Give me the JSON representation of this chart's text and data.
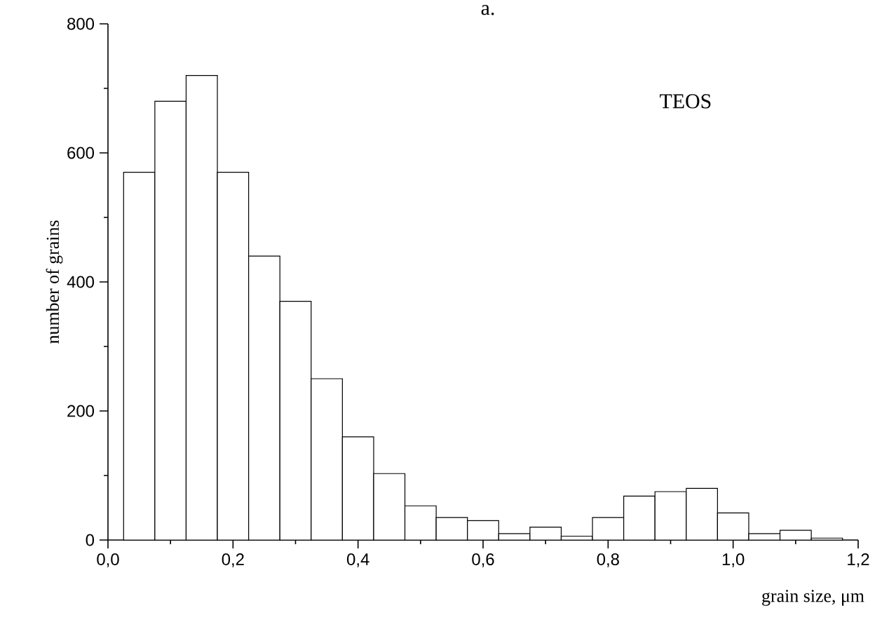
{
  "chart_data": {
    "type": "histogram",
    "title": "a.",
    "xlabel": "grain size, μm",
    "ylabel": "number of grains",
    "annotations": [
      "TEOS"
    ],
    "bins": [
      0.025,
      0.075,
      0.125,
      0.175,
      0.225,
      0.275,
      0.325,
      0.375,
      0.425,
      0.475,
      0.525,
      0.575,
      0.625,
      0.675,
      0.725,
      0.775,
      0.825,
      0.875,
      0.925,
      0.975,
      1.025,
      1.075,
      1.125,
      1.175
    ],
    "values": [
      570,
      680,
      720,
      570,
      440,
      370,
      250,
      160,
      103,
      53,
      35,
      30,
      10,
      20,
      6,
      35,
      68,
      75,
      80,
      42,
      10,
      15,
      3
    ],
    "color": "#ffffff",
    "xlim": [
      0,
      1.2
    ],
    "ylim": [
      0,
      800
    ],
    "xticks": [
      {
        "value": 0,
        "label": "0,0"
      },
      {
        "value": 0.2,
        "label": "0,2"
      },
      {
        "value": 0.4,
        "label": "0,4"
      },
      {
        "value": 0.6,
        "label": "0,6"
      },
      {
        "value": 0.8,
        "label": "0,8"
      },
      {
        "value": 1.0,
        "label": "1,0"
      },
      {
        "value": 1.2,
        "label": "1,2"
      }
    ],
    "yticks": [
      0,
      200,
      400,
      600,
      800
    ]
  }
}
